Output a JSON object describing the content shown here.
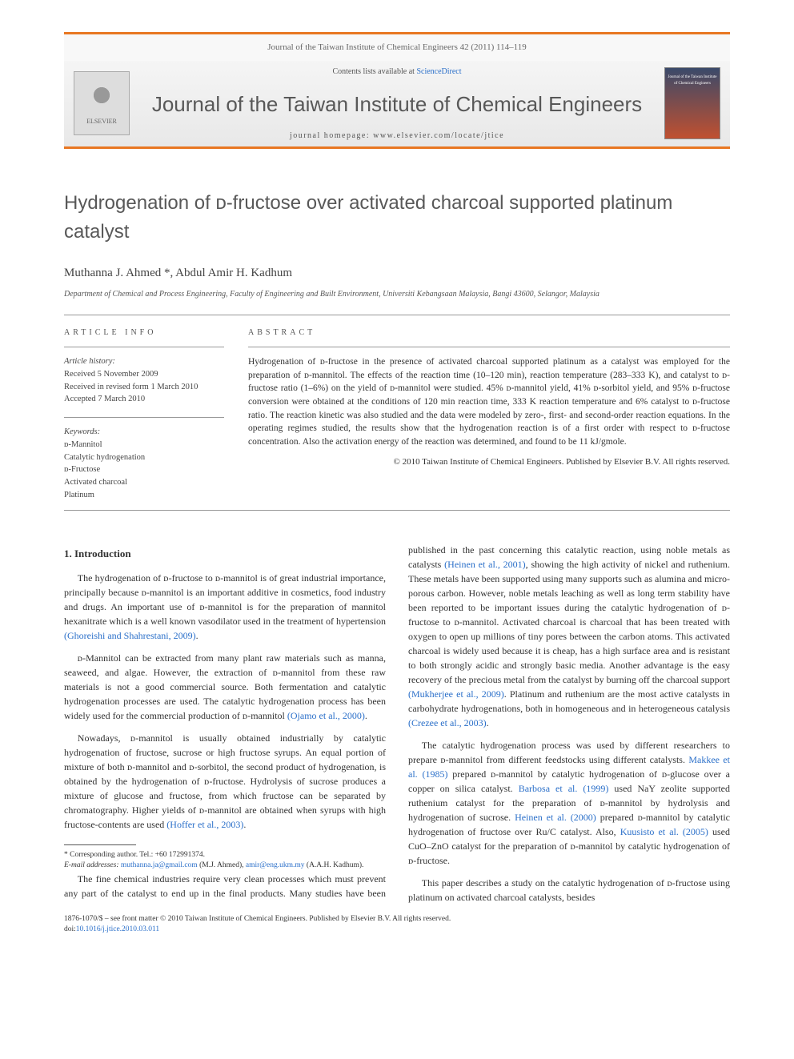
{
  "header": {
    "journal_ref": "Journal of the Taiwan Institute of Chemical Engineers 42 (2011) 114–119",
    "contents_prefix": "Contents lists available at ",
    "contents_link": "ScienceDirect",
    "journal_title": "Journal of the Taiwan Institute of Chemical Engineers",
    "homepage_label": "journal homepage: www.elsevier.com/locate/jtice",
    "elsevier_label": "ELSEVIER",
    "cover_text": "Journal of the Taiwan Institute of Chemical Engineers",
    "accent_color": "#e87722",
    "link_color": "#2a6fc9"
  },
  "article": {
    "title": "Hydrogenation of ᴅ-fructose over activated charcoal supported platinum catalyst",
    "authors": "Muthanna J. Ahmed *, Abdul Amir H. Kadhum",
    "affiliation": "Department of Chemical and Process Engineering, Faculty of Engineering and Built Environment, Universiti Kebangsaan Malaysia, Bangi 43600, Selangor, Malaysia"
  },
  "article_info": {
    "label": "ARTICLE INFO",
    "history_label": "Article history:",
    "received": "Received 5 November 2009",
    "revised": "Received in revised form 1 March 2010",
    "accepted": "Accepted 7 March 2010",
    "keywords_label": "Keywords:",
    "keywords": [
      "ᴅ-Mannitol",
      "Catalytic hydrogenation",
      "ᴅ-Fructose",
      "Activated charcoal",
      "Platinum"
    ]
  },
  "abstract": {
    "label": "ABSTRACT",
    "text": "Hydrogenation of ᴅ-fructose in the presence of activated charcoal supported platinum as a catalyst was employed for the preparation of ᴅ-mannitol. The effects of the reaction time (10–120 min), reaction temperature (283–333 K), and catalyst to ᴅ-fructose ratio (1–6%) on the yield of ᴅ-mannitol were studied. 45% ᴅ-mannitol yield, 41% ᴅ-sorbitol yield, and 95% ᴅ-fructose conversion were obtained at the conditions of 120 min reaction time, 333 K reaction temperature and 6% catalyst to ᴅ-fructose ratio. The reaction kinetic was also studied and the data were modeled by zero-, first- and second-order reaction equations. In the operating regimes studied, the results show that the hydrogenation reaction is of a first order with respect to ᴅ-fructose concentration. Also the activation energy of the reaction was determined, and found to be 11 kJ/gmole.",
    "copyright": "© 2010 Taiwan Institute of Chemical Engineers. Published by Elsevier B.V. All rights reserved."
  },
  "body": {
    "section_heading": "1. Introduction",
    "p1a": "The hydrogenation of ᴅ-fructose to ᴅ-mannitol is of great industrial importance, principally because ᴅ-mannitol is an important additive in cosmetics, food industry and drugs. An important use of ᴅ-mannitol is for the preparation of mannitol hexanitrate which is a well known vasodilator used in the treatment of hypertension ",
    "ref1": "(Ghoreishi and Shahrestani, 2009)",
    "p1b": ".",
    "p2a": "ᴅ-Mannitol can be extracted from many plant raw materials such as manna, seaweed, and algae. However, the extraction of ᴅ-mannitol from these raw materials is not a good commercial source. Both fermentation and catalytic hydrogenation processes are used. The catalytic hydrogenation process has been widely used for the commercial production of ᴅ-mannitol ",
    "ref2": "(Ojamo et al., 2000)",
    "p2b": ".",
    "p3a": "Nowadays, ᴅ-mannitol is usually obtained industrially by catalytic hydrogenation of fructose, sucrose or high fructose syrups. An equal portion of mixture of both ᴅ-mannitol and ᴅ-sorbitol, the second product of hydrogenation, is obtained by the hydrogenation of ᴅ-fructose. Hydrolysis of sucrose produces a mixture of glucose and fructose, from which fructose can be separated by chromatography. Higher yields of ᴅ-mannitol are obtained when syrups with high fructose-contents are used ",
    "ref3": "(Hoffer et al., 2003)",
    "p3b": ".",
    "p4a": "The fine chemical industries require very clean processes which must prevent any part of the catalyst to end up in the final products. Many studies have been published in the past concerning this catalytic reaction, using noble metals as catalysts ",
    "ref4": "(Heinen et al., 2001)",
    "p4b": ", showing the high activity of nickel and ruthenium. These metals have been supported using many supports such as alumina and micro-porous carbon. However, noble metals leaching as well as long term stability have been reported to be important issues during the catalytic hydrogenation of ᴅ-fructose to ᴅ-mannitol. Activated charcoal is charcoal that has been treated with oxygen to open up millions of tiny pores between the carbon atoms. This activated charcoal is widely used because it is cheap, has a high surface area and is resistant to both strongly acidic and strongly basic media. Another advantage is the easy recovery of the precious metal from the catalyst by burning off the charcoal support ",
    "ref5": "(Mukherjee et al., 2009)",
    "p4c": ". Platinum and ruthenium are the most active catalysts in carbohydrate hydrogenations, both in homogeneous and in heterogeneous catalysis ",
    "ref6": "(Crezee et al., 2003)",
    "p4d": ".",
    "p5a": "The catalytic hydrogenation process was used by different researchers to prepare ᴅ-mannitol from different feedstocks using different catalysts. ",
    "ref7": "Makkee et al. (1985)",
    "p5b": " prepared ᴅ-mannitol by catalytic hydrogenation of ᴅ-glucose over a copper on silica catalyst. ",
    "ref8": "Barbosa et al. (1999)",
    "p5c": " used NaY zeolite supported ruthenium catalyst for the preparation of ᴅ-mannitol by hydrolysis and hydrogenation of sucrose. ",
    "ref9": "Heinen et al. (2000)",
    "p5d": " prepared ᴅ-mannitol by catalytic hydrogenation of fructose over Ru/C catalyst. Also, ",
    "ref10": "Kuusisto et al. (2005)",
    "p5e": " used CuO–ZnO catalyst for the preparation of ᴅ-mannitol by catalytic hydrogenation of ᴅ-fructose.",
    "p6": "This paper describes a study on the catalytic hydrogenation of ᴅ-fructose using platinum on activated charcoal catalysts, besides"
  },
  "footnote": {
    "corr": "* Corresponding author. Tel.: +60 172991374.",
    "email_label": "E-mail addresses: ",
    "email1": "muthanna.ja@gmail.com",
    "email1_who": " (M.J. Ahmed), ",
    "email2": "amir@eng.ukm.my",
    "email2_who": " (A.A.H. Kadhum)."
  },
  "footer": {
    "line1": "1876-1070/$ – see front matter © 2010 Taiwan Institute of Chemical Engineers. Published by Elsevier B.V. All rights reserved.",
    "doi_label": "doi:",
    "doi": "10.1016/j.jtice.2010.03.011"
  }
}
